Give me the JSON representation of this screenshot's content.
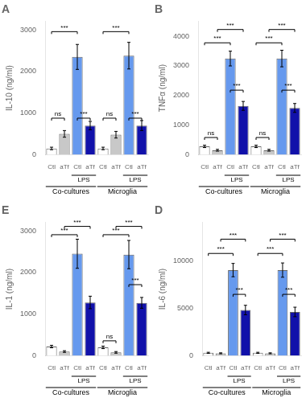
{
  "chart_data": [
    {
      "type": "bar",
      "title": "A",
      "ylabel": "IL-10 (ng/ml)",
      "grid": false,
      "categories": [
        "Ctl",
        "aTf",
        "Ctl",
        "aTf",
        "Ctl",
        "aTf",
        "Ctl",
        "aTf"
      ],
      "values": [
        150,
        500,
        2350,
        700,
        150,
        480,
        2380,
        700
      ],
      "errors": [
        30,
        80,
        300,
        100,
        30,
        80,
        320,
        120
      ],
      "colors": [
        "#ffffff",
        "#c8c8c8",
        "#6699ee",
        "#1111aa",
        "#ffffff",
        "#c8c8c8",
        "#6699ee",
        "#1111aa"
      ],
      "ylim": [
        0,
        3200
      ],
      "yticks": [
        0,
        1000,
        2000,
        3000
      ],
      "sublabels": [
        {
          "label": "LPS",
          "from": 2,
          "to": 3
        },
        {
          "label": "LPS",
          "from": 6,
          "to": 7
        }
      ],
      "groups": [
        {
          "label": "Co-cultures",
          "from": 0,
          "to": 3
        },
        {
          "label": "Microglia",
          "from": 4,
          "to": 7
        }
      ],
      "brackets": [
        {
          "from": 0,
          "to": 1,
          "y": 820,
          "label": "ns"
        },
        {
          "from": 2,
          "to": 3,
          "y": 820,
          "label": "***"
        },
        {
          "from": 4,
          "to": 5,
          "y": 820,
          "label": "ns"
        },
        {
          "from": 6,
          "to": 7,
          "y": 820,
          "label": "***"
        },
        {
          "from": 0,
          "to": 2,
          "y": 2900,
          "label": "***"
        },
        {
          "from": 4,
          "to": 6,
          "y": 2900,
          "label": "***"
        }
      ]
    },
    {
      "type": "bar",
      "title": "B",
      "ylabel": "TNFα (ng/ml)",
      "grid": false,
      "categories": [
        "Ctl",
        "aTf",
        "Ctl",
        "aTf",
        "Ctl",
        "aTf",
        "Ctl",
        "aTf"
      ],
      "values": [
        280,
        150,
        3250,
        1650,
        280,
        150,
        3250,
        1580
      ],
      "errors": [
        40,
        30,
        250,
        150,
        40,
        30,
        280,
        150
      ],
      "colors": [
        "#ffffff",
        "#c8c8c8",
        "#6699ee",
        "#1111aa",
        "#ffffff",
        "#c8c8c8",
        "#6699ee",
        "#1111aa"
      ],
      "ylim": [
        0,
        4500
      ],
      "yticks": [
        0,
        1000,
        2000,
        3000,
        4000
      ],
      "sublabels": [
        {
          "label": "LPS",
          "from": 2,
          "to": 3
        },
        {
          "label": "LPS",
          "from": 6,
          "to": 7
        }
      ],
      "groups": [
        {
          "label": "Co-cultures",
          "from": 0,
          "to": 3
        },
        {
          "label": "Microglia",
          "from": 4,
          "to": 7
        }
      ],
      "brackets": [
        {
          "from": 0,
          "to": 1,
          "y": 500,
          "label": "ns"
        },
        {
          "from": 2,
          "to": 3,
          "y": 2100,
          "label": "***"
        },
        {
          "from": 4,
          "to": 5,
          "y": 500,
          "label": "ns"
        },
        {
          "from": 6,
          "to": 7,
          "y": 2100,
          "label": "***"
        },
        {
          "from": 0,
          "to": 2,
          "y": 3700,
          "label": "***"
        },
        {
          "from": 1,
          "to": 3,
          "y": 4150,
          "label": "***"
        },
        {
          "from": 4,
          "to": 6,
          "y": 3700,
          "label": "***"
        },
        {
          "from": 5,
          "to": 7,
          "y": 4150,
          "label": "***"
        }
      ]
    },
    {
      "type": "bar",
      "title": "E",
      "ylabel": "IL-1 (ng/ml)",
      "grid": false,
      "categories": [
        "Ctl",
        "aTf",
        "Ctl",
        "aTf",
        "Ctl",
        "aTf",
        "Ctl",
        "aTf"
      ],
      "values": [
        220,
        100,
        2450,
        1280,
        200,
        80,
        2430,
        1270
      ],
      "errors": [
        30,
        20,
        350,
        150,
        30,
        20,
        340,
        130
      ],
      "colors": [
        "#ffffff",
        "#c8c8c8",
        "#6699ee",
        "#1111aa",
        "#ffffff",
        "#c8c8c8",
        "#6699ee",
        "#1111aa"
      ],
      "ylim": [
        0,
        3200
      ],
      "yticks": [
        0,
        1000,
        2000,
        3000
      ],
      "sublabels": [
        {
          "label": "LPS",
          "from": 2,
          "to": 3
        },
        {
          "label": "LPS",
          "from": 6,
          "to": 7
        }
      ],
      "groups": [
        {
          "label": "Co-cultures",
          "from": 0,
          "to": 3
        },
        {
          "label": "Microglia",
          "from": 4,
          "to": 7
        }
      ],
      "brackets": [
        {
          "from": 4,
          "to": 5,
          "y": 300,
          "label": "ns"
        },
        {
          "from": 6,
          "to": 7,
          "y": 1650,
          "label": "***"
        },
        {
          "from": 0,
          "to": 2,
          "y": 2850,
          "label": "***"
        },
        {
          "from": 1,
          "to": 3,
          "y": 3050,
          "label": "***"
        },
        {
          "from": 4,
          "to": 6,
          "y": 2850,
          "label": "***"
        },
        {
          "from": 5,
          "to": 7,
          "y": 3050,
          "label": "***"
        }
      ]
    },
    {
      "type": "bar",
      "title": "D",
      "ylabel": "IL-6 (ng/ml)",
      "grid": false,
      "categories": [
        "Ctl",
        "aTf",
        "Ctl",
        "aTf",
        "Ctl",
        "aTf",
        "Ctl",
        "aTf"
      ],
      "values": [
        300,
        250,
        9000,
        4800,
        300,
        250,
        9000,
        4600
      ],
      "errors": [
        60,
        50,
        700,
        500,
        60,
        50,
        750,
        500
      ],
      "colors": [
        "#ffffff",
        "#c8c8c8",
        "#6699ee",
        "#1111aa",
        "#ffffff",
        "#c8c8c8",
        "#6699ee",
        "#1111aa"
      ],
      "ylim": [
        0,
        14000
      ],
      "yticks": [
        0,
        5000,
        10000
      ],
      "sublabels": [
        {
          "label": "LPS",
          "from": 2,
          "to": 3
        },
        {
          "label": "LPS",
          "from": 6,
          "to": 7
        }
      ],
      "groups": [
        {
          "label": "Co-cultures",
          "from": 0,
          "to": 3
        },
        {
          "label": "Microglia",
          "from": 4,
          "to": 7
        }
      ],
      "brackets": [
        {
          "from": 2,
          "to": 3,
          "y": 6200,
          "label": "***"
        },
        {
          "from": 6,
          "to": 7,
          "y": 6200,
          "label": "***"
        },
        {
          "from": 0,
          "to": 2,
          "y": 10500,
          "label": "***"
        },
        {
          "from": 1,
          "to": 3,
          "y": 12000,
          "label": "***"
        },
        {
          "from": 4,
          "to": 6,
          "y": 10500,
          "label": "***"
        },
        {
          "from": 5,
          "to": 7,
          "y": 12000,
          "label": "***"
        }
      ]
    }
  ]
}
